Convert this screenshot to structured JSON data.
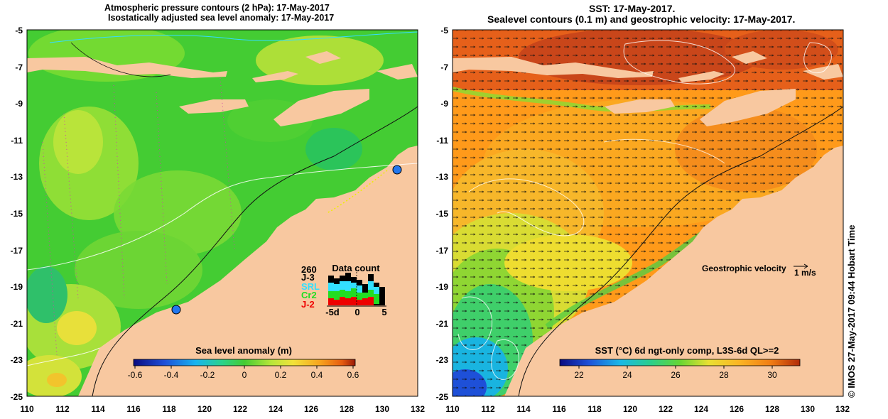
{
  "left_panel": {
    "title_line1": "Atmospheric pressure contours (2 hPa): 17-May-2017",
    "title_line2": "Isostatically adjusted sea level anomaly: 17-May-2017",
    "colorbar_title": "Sea level anomaly (m)",
    "colorbar_ticks": [
      "-0.6",
      "-0.4",
      "-0.2",
      "0",
      "0.2",
      "0.4",
      "0.6"
    ],
    "data_count": {
      "title": "Data count",
      "max_label": "260",
      "missions": [
        {
          "label": "J-3",
          "color": "#000000"
        },
        {
          "label": "SRL",
          "color": "#33e0ff"
        },
        {
          "label": "Cr2",
          "color": "#22dd22"
        },
        {
          "label": "J-2",
          "color": "#ee0000"
        }
      ],
      "x_ticks": [
        "-5d",
        "0",
        "5"
      ]
    }
  },
  "right_panel": {
    "title_line1": "SST: 17-May-2017.",
    "title_line2": "Sealevel contours (0.1 m) and geostrophic velocity: 17-May-2017.",
    "colorbar_title": "SST (°C) 6d ngt-only comp, L3S-6d QL>=2",
    "colorbar_ticks": [
      "22",
      "24",
      "26",
      "28",
      "30"
    ],
    "velocity_label": "Geostrophic velocity",
    "velocity_scale": "1 m/s"
  },
  "axes": {
    "x_ticks": [
      "110",
      "112",
      "114",
      "116",
      "118",
      "120",
      "122",
      "124",
      "126",
      "128",
      "130",
      "132"
    ],
    "y_ticks": [
      "-5",
      "-7",
      "-9",
      "-11",
      "-13",
      "-15",
      "-17",
      "-19",
      "-21",
      "-23",
      "-25"
    ],
    "lon_range": [
      110,
      132
    ],
    "lat_range": [
      -25,
      -5
    ]
  },
  "side_label": "© IMOS 27-May-2017 09:44 Hobart Time",
  "colors": {
    "land": "#f8c8a0",
    "sla_ocean": "#44cc33",
    "sst_ocean": "#ff9a1a"
  }
}
